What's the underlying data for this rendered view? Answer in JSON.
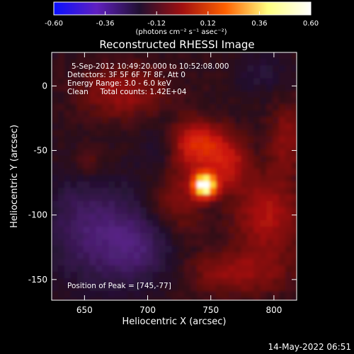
{
  "chart_data": {
    "type": "heatmap",
    "title": "Reconstructed RHESSI Image",
    "xlabel": "Heliocentric X (arcsec)",
    "ylabel": "Heliocentric Y (arcsec)",
    "xlim": [
      624,
      818
    ],
    "ylim": [
      -166,
      26
    ],
    "x_ticks": [
      650,
      700,
      750,
      800
    ],
    "x_tick_labels": [
      "650",
      "700",
      "750",
      "800"
    ],
    "y_ticks": [
      0,
      -50,
      -100,
      -150
    ],
    "y_tick_labels": [
      "0",
      "-50",
      "-100",
      "-150"
    ],
    "colorbar": {
      "range": [
        -0.6,
        0.6
      ],
      "ticks": [
        -0.6,
        -0.36,
        -0.12,
        0.12,
        0.36,
        0.6
      ],
      "tick_labels": [
        "-0.60",
        "-0.36",
        "-0.12",
        "0.12",
        "0.36",
        "0.60"
      ],
      "unit_label": "(photons cm⁻² s⁻¹ asec⁻²)",
      "colormap": [
        "#0a10ff",
        "#6020c0",
        "#201030",
        "#a01010",
        "#ff6000",
        "#ffff80",
        "#ffffff"
      ]
    },
    "annotations": [
      "5-Sep-2012 10:49:20.000 to 10:52:08.000",
      "Detectors: 3F 5F 6F 7F 8F, Att 0",
      "Energy Range: 3.0 - 6.0 keV",
      "Clean     Total counts: 1.42E+04",
      "Position of Peak = [745,-77]"
    ],
    "peak": {
      "x": 745,
      "y": -77
    },
    "grid": false,
    "legend": "none"
  },
  "footer": {
    "timestamp": "14-May-2022 06:51"
  }
}
